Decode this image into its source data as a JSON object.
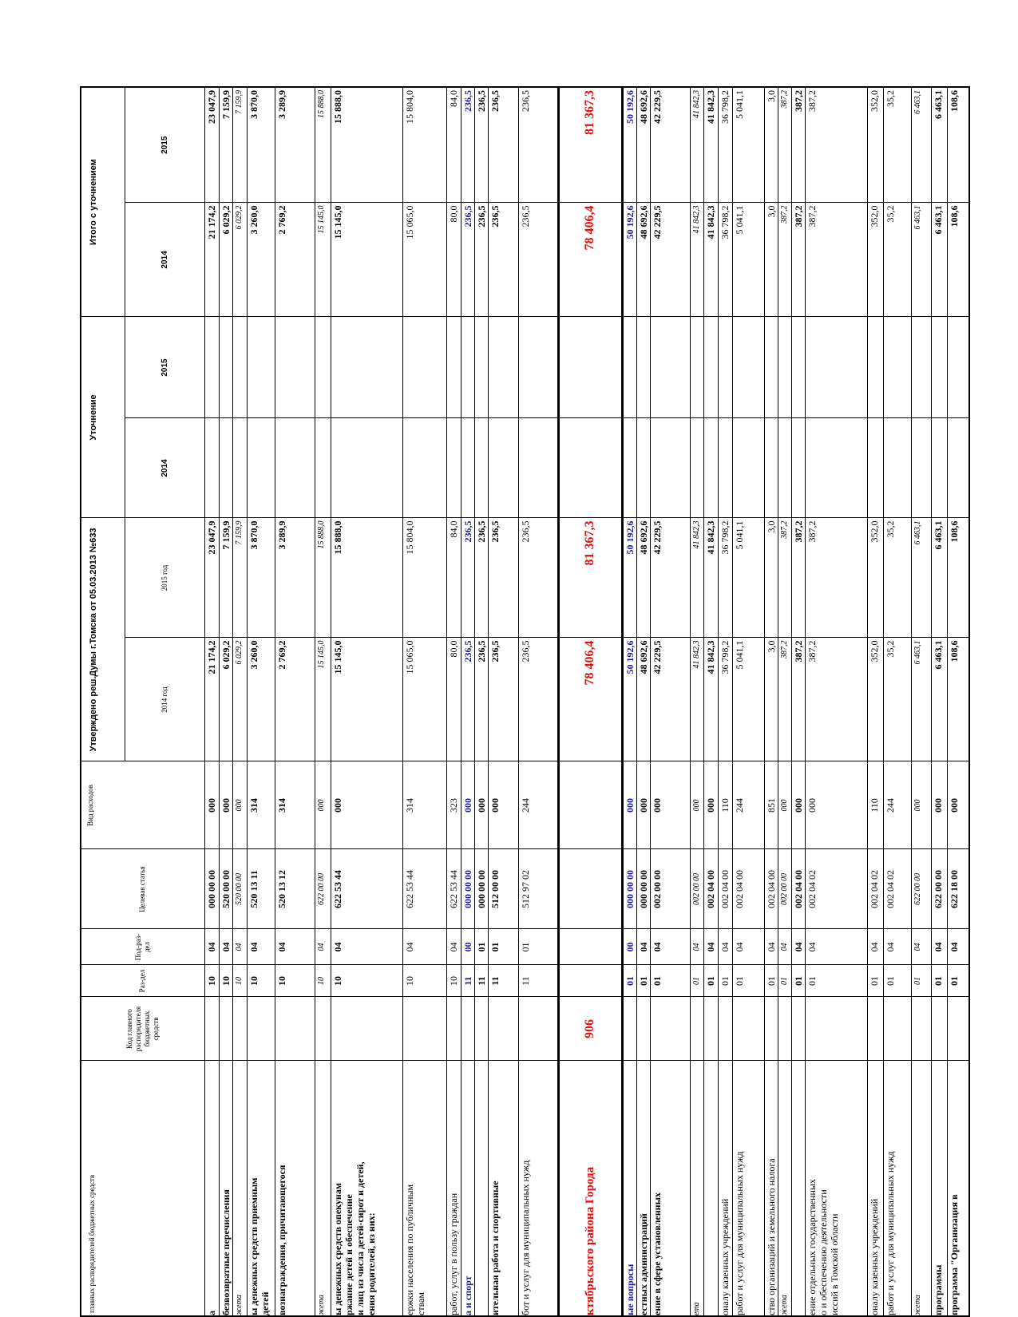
{
  "header": {
    "name": "главных распорядителей бюджетных средств",
    "code": "Код главного распорядителя бюджетных средств",
    "section": "Раз-дел",
    "subsection": "Под-раз-дел",
    "target": "Целевая статья",
    "kind": "Вид расходов",
    "approved": "Утверждено реш.Думы г.Томска от 05.03.2013 №633",
    "approved_2014": "2014 год",
    "approved_2015": "2015 год",
    "refined": "Уточнение",
    "refined_2014": "2014",
    "refined_2015": "2015",
    "total": "Итого с уточнением",
    "total_2014": "2014",
    "total_2015": "2015"
  },
  "table": {
    "rows": [
      {
        "style": "bold",
        "cells": [
          "а",
          null,
          "10",
          "04",
          "000 00 00",
          "000",
          "21 174,2",
          "23 047,9",
          null,
          null,
          "21 174,2",
          "23 047,9"
        ]
      },
      {
        "style": "bold",
        "cells": [
          "безвозвратные перечисления",
          null,
          "10",
          "04",
          "520 00 00",
          "000",
          "6 029,2",
          "7 159,9",
          null,
          null,
          "6 029,2",
          "7 159,9"
        ]
      },
      {
        "style": "italic",
        "cells": [
          "жета",
          null,
          "10",
          "04",
          "520 00 00",
          "000",
          "6 029,2",
          "7 159,9",
          null,
          null,
          "6 029,2",
          "7 159,9"
        ]
      },
      {
        "style": "bold",
        "cells": [
          "ы денежных средств приемным\nдетей",
          null,
          "10",
          "04",
          "520 13 11",
          "314",
          "3 260,0",
          "3 870,0",
          null,
          null,
          "3 260,0",
          "3 870,0"
        ]
      },
      {
        "style": "bold",
        "cells": [
          "вознаграждения, причитающегося",
          null,
          "10",
          "04",
          "520 13 12",
          "314",
          "2 769,2",
          "3 289,9",
          null,
          null,
          "2 769,2",
          "3 289,9"
        ]
      },
      {
        "style": "italic",
        "cells": [
          "жета",
          null,
          "10",
          "04",
          "622 00 00",
          "000",
          "15 145,0",
          "15 888,0",
          null,
          null,
          "15 145,0",
          "15 888,0"
        ]
      },
      {
        "style": "bold",
        "cells": [
          "ы денежных средств опекунам\nржание детей и обеспечение\nи лиц из числа детей-сирот и детей,\nения родителей, из них:",
          null,
          "10",
          "04",
          "622 53 44",
          "000",
          "15 145,0",
          "15 888,0",
          null,
          null,
          "15 145,0",
          "15 888,0"
        ]
      },
      {
        "style": "normal",
        "cells": [
          "ержки населения по публичным\nствам",
          null,
          "10",
          "04",
          "622 53 44",
          "314",
          "15 065,0",
          "15 804,0",
          null,
          null,
          "15 065,0",
          "15 804,0"
        ]
      },
      {
        "style": "normal",
        "cells": [
          "работ, услуг в пользу граждан",
          null,
          "10",
          "04",
          "622 53 44",
          "323",
          "80,0",
          "84,0",
          null,
          null,
          "80,0",
          "84,0"
        ]
      },
      {
        "style": "blue",
        "cells": [
          "а и спорт",
          null,
          "11",
          "00",
          "000 00 00",
          "000",
          "236,5",
          "236,5",
          null,
          null,
          "236,5",
          "236,5"
        ]
      },
      {
        "style": "bold",
        "cells": [
          null,
          null,
          "11",
          "01",
          "000 00 00",
          "000",
          "236,5",
          "236,5",
          null,
          null,
          "236,5",
          "236,5"
        ]
      },
      {
        "style": "bold",
        "cells": [
          "ительная работа и спортивные",
          null,
          "11",
          "01",
          "512 00 00",
          "000",
          "236,5",
          "236,5",
          null,
          null,
          "236,5",
          "236,5"
        ]
      },
      {
        "style": "normal",
        "cells": [
          "бот и услуг для муниципальных нужд",
          null,
          "11",
          "01",
          "512 97 02",
          "244",
          "236,5",
          "236,5",
          null,
          null,
          "236,5",
          "236,5"
        ]
      },
      {
        "style": "red",
        "cells": [
          "ктябрьского района Города",
          "906",
          null,
          null,
          null,
          null,
          "78 406,4",
          "81 367,3",
          null,
          null,
          "78 406,4",
          "81 367,3"
        ]
      },
      {
        "style": "blue",
        "cells": [
          "ые вопросы",
          null,
          "01",
          "00",
          "000 00 00",
          "000",
          "50 192,6",
          "50 192,6",
          null,
          null,
          "50 192,6",
          "50 192,6"
        ]
      },
      {
        "style": "bold",
        "cells": [
          "естных администраций",
          null,
          "01",
          "04",
          "000 00 00",
          "000",
          "48 692,6",
          "48 692,6",
          null,
          null,
          "48 692,6",
          "48 692,6"
        ]
      },
      {
        "style": "bold",
        "cells": [
          "ение в сфере установленных",
          null,
          "01",
          "04",
          "002 00 00",
          "000",
          "42 229,5",
          "42 229,5",
          null,
          null,
          "42 229,5",
          "42 229,5"
        ]
      },
      {
        "style": "italic",
        "cells": [
          "ета",
          null,
          "01",
          "04",
          "002 00 00",
          "000",
          "41 842,3",
          "41 842,3",
          null,
          null,
          "41 842,3",
          "41 842,3"
        ]
      },
      {
        "style": "bold",
        "cells": [
          null,
          null,
          "01",
          "04",
          "002 04 00",
          "000",
          "41 842,3",
          "41 842,3",
          null,
          null,
          "41 842,3",
          "41 842,3"
        ]
      },
      {
        "style": "normal",
        "cells": [
          "оналу казенных учреждений",
          null,
          "01",
          "04",
          "002 04 00",
          "110",
          "36 798,2",
          "36 798,2",
          null,
          null,
          "36 798,2",
          "36 798,2"
        ]
      },
      {
        "style": "normal",
        "cells": [
          "работ и услуг для муниципальных нужд",
          null,
          "01",
          "04",
          "002 04 00",
          "244",
          "5 041,1",
          "5 041,1",
          null,
          null,
          "5 041,1",
          "5 041,1"
        ]
      },
      {
        "style": "normal",
        "cells": [
          "ство организаций и земельного налога",
          null,
          "01",
          "04",
          "002 04 00",
          "851",
          "3,0",
          "3,0",
          null,
          null,
          "3,0",
          "3,0"
        ]
      },
      {
        "style": "italic",
        "cells": [
          "жета",
          null,
          "01",
          "04",
          "002 00 00",
          "000",
          "387,2",
          "387,2",
          null,
          null,
          "387,2",
          "387,2"
        ]
      },
      {
        "style": "bold",
        "cells": [
          null,
          null,
          "01",
          "04",
          "002 04 00",
          "000",
          "387,2",
          "387,2",
          null,
          null,
          "387,2",
          "387,2"
        ]
      },
      {
        "style": "normal",
        "cells": [
          "ение отдельных государственных\nо и обеспечению деятельности\nиссий в Томской области",
          null,
          "01",
          "04",
          "002 04 02",
          "000",
          "387,2",
          "387,2",
          null,
          null,
          "387,2",
          "387,2"
        ]
      },
      {
        "style": "normal",
        "cells": [
          "оналу казенных учреждений",
          null,
          "01",
          "04",
          "002 04 02",
          "110",
          "352,0",
          "352,0",
          null,
          null,
          "352,0",
          "352,0"
        ]
      },
      {
        "style": "normal",
        "cells": [
          "работ и услуг для муниципальных нужд",
          null,
          "01",
          "04",
          "002 04 02",
          "244",
          "35,2",
          "35,2",
          null,
          null,
          "35,2",
          "35,2"
        ]
      },
      {
        "style": "italic",
        "cells": [
          "жета",
          null,
          "01",
          "04",
          "622 00 00",
          "000",
          "6 463,1",
          "6 463,1",
          null,
          null,
          "6 463,1",
          "6 463,1"
        ]
      },
      {
        "style": "bold",
        "cells": [
          "программы",
          null,
          "01",
          "04",
          "622 00 00",
          "000",
          "6 463,1",
          "6 463,1",
          null,
          null,
          "6 463,1",
          "6 463,1"
        ]
      },
      {
        "style": "bold",
        "cells": [
          "программа \"Организация в",
          null,
          "01",
          "04",
          "622 18 00",
          "000",
          "108,6",
          "108,6",
          null,
          null,
          "108,6",
          "108,6"
        ]
      }
    ]
  }
}
